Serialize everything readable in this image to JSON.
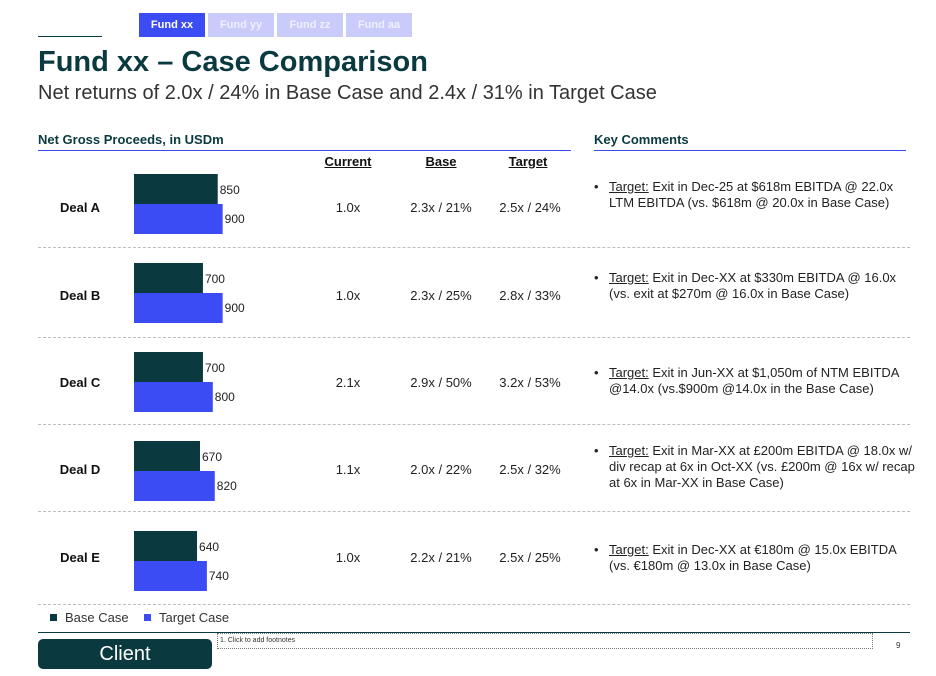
{
  "nav": {
    "tabs": [
      {
        "label": "Fund xx",
        "active": true
      },
      {
        "label": "Fund yy",
        "active": false
      },
      {
        "label": "Fund zz",
        "active": false
      },
      {
        "label": "Fund aa",
        "active": false
      }
    ]
  },
  "header": {
    "title": "Fund xx – Case Comparison",
    "subtitle": "Net returns of 2.0x / 24% in Base Case and 2.4x / 31% in Target Case"
  },
  "left_section": {
    "heading": "Net Gross Proceeds, in USDm"
  },
  "right_section": {
    "heading": "Key Comments"
  },
  "columns": {
    "current": "Current",
    "base": "Base",
    "target": "Target"
  },
  "deals": [
    {
      "name": "Deal A",
      "current": "1.0x",
      "base": "2.3x / 21%",
      "target": "2.5x / 24%",
      "comment_lead": "Target:",
      "comment": " Exit in Dec-25 at $618m EBITDA @ 22.0x LTM EBITDA (vs. $618m @ 20.0x in Base Case)"
    },
    {
      "name": "Deal B",
      "current": "1.0x",
      "base": "2.3x / 25%",
      "target": "2.8x / 33%",
      "comment_lead": "Target:",
      "comment": " Exit in Dec-XX at $330m EBITDA @ 16.0x (vs. exit at $270m @ 16.0x in Base Case)"
    },
    {
      "name": "Deal C",
      "current": "2.1x",
      "base": "2.9x / 50%",
      "target": "3.2x / 53%",
      "comment_lead": "Target:",
      "comment": " Exit in Jun-XX at $1,050m of NTM EBITDA @14.0x (vs.$900m @14.0x in the Base Case)"
    },
    {
      "name": "Deal D",
      "current": "1.1x",
      "base": "2.0x / 22%",
      "target": "2.5x / 32%",
      "comment_lead": "Target:",
      "comment": " Exit in Mar-XX at £200m EBITDA @ 18.0x w/ div recap at 6x in Oct-XX (vs. £200m @ 16x w/ recap at 6x in Mar-XX in Base Case)"
    },
    {
      "name": "Deal E",
      "current": "1.0x",
      "base": "2.2x / 21%",
      "target": "2.5x / 25%",
      "comment_lead": "Target:",
      "comment": " Exit in Dec-XX at €180m @ 15.0x EBITDA (vs. €180m @ 13.0x in Base Case)"
    }
  ],
  "chart_data": {
    "type": "bar",
    "orientation": "horizontal",
    "title": "Net Gross Proceeds, in USDm",
    "categories": [
      "Deal A",
      "Deal B",
      "Deal C",
      "Deal D",
      "Deal E"
    ],
    "series": [
      {
        "name": "Base Case",
        "values": [
          850,
          700,
          700,
          670,
          640
        ],
        "color": "#0a3a40"
      },
      {
        "name": "Target Case",
        "values": [
          900,
          900,
          800,
          820,
          740
        ],
        "color": "#3b4cf5"
      }
    ],
    "value_labels": {
      "base": [
        "850",
        "700",
        "700",
        "670",
        "640"
      ],
      "target": [
        "900",
        "900",
        "800",
        "820",
        "740"
      ]
    },
    "legend_position": "bottom-left",
    "grid": false
  },
  "legend": {
    "base": "Base Case",
    "target": "Target Case"
  },
  "footer": {
    "client_label": "Client",
    "footnote": "1. Click to add footnotes",
    "page_number": "9"
  }
}
